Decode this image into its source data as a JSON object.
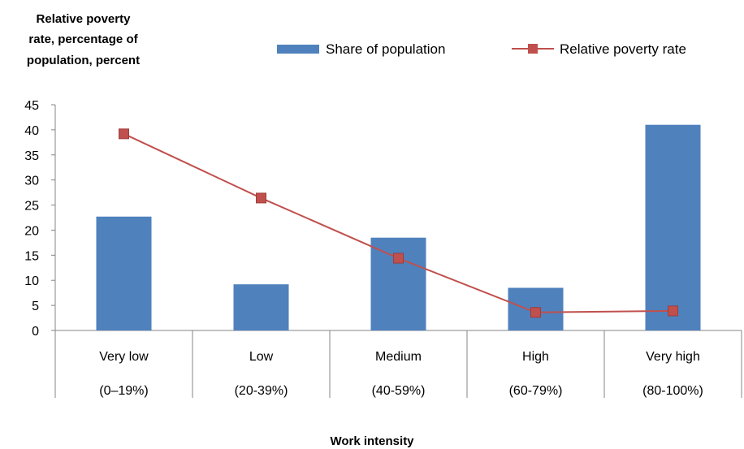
{
  "chart_data": {
    "type": "bar",
    "ylabel_lines": [
      "Relative poverty",
      "rate, percentage of",
      "population,  percent"
    ],
    "xlabel": "Work intensity",
    "ylim": [
      0,
      45
    ],
    "yticks": [
      0,
      5,
      10,
      15,
      20,
      25,
      30,
      35,
      40,
      45
    ],
    "categories": [
      {
        "name": "Very low",
        "range": "(0–19%)"
      },
      {
        "name": "Low",
        "range": "(20-39%)"
      },
      {
        "name": "Medium",
        "range": "(40-59%)"
      },
      {
        "name": "High",
        "range": "(60-79%)"
      },
      {
        "name": "Very high",
        "range": "(80-100%)"
      }
    ],
    "series": [
      {
        "name": "Share of population",
        "kind": "bar",
        "color": "#4F81BD",
        "values": [
          22.7,
          9.2,
          18.5,
          8.5,
          41.0
        ]
      },
      {
        "name": "Relative poverty rate",
        "kind": "line",
        "color": "#C0504D",
        "values": [
          39.2,
          26.4,
          14.4,
          3.6,
          3.9
        ]
      }
    ],
    "grid": false,
    "legend_position": "top"
  }
}
